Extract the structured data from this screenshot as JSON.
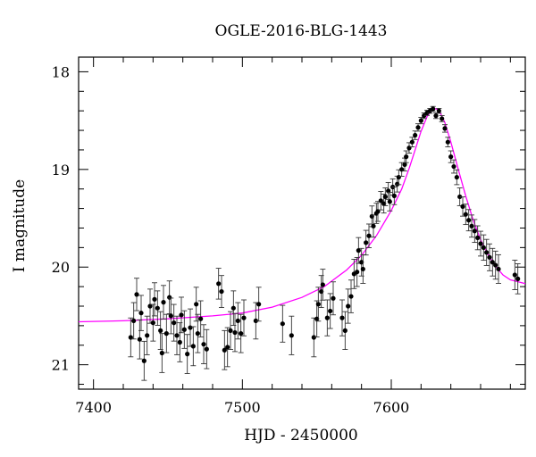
{
  "chart_data": {
    "type": "scatter",
    "title": "OGLE-2016-BLG-1443",
    "xlabel": "HJD - 2450000",
    "ylabel": "I magnitude",
    "xlim": [
      7390,
      7690
    ],
    "ylim": [
      21.25,
      17.85
    ],
    "y_inverted": true,
    "xticks": [
      7400,
      7500,
      7600
    ],
    "yticks": [
      18,
      19,
      20,
      21
    ],
    "grid": false,
    "colors": {
      "data": "#000000",
      "model": "#ff00ff"
    },
    "model_curve": {
      "name": "",
      "x": [
        7390,
        7420,
        7450,
        7480,
        7500,
        7520,
        7540,
        7555,
        7570,
        7580,
        7590,
        7600,
        7607,
        7612,
        7616,
        7620,
        7624,
        7628,
        7632,
        7636,
        7640,
        7645,
        7650,
        7655,
        7660,
        7665,
        7670,
        7675,
        7680,
        7690
      ],
      "y": [
        20.56,
        20.55,
        20.53,
        20.5,
        20.47,
        20.41,
        20.31,
        20.2,
        20.03,
        19.88,
        19.68,
        19.42,
        19.2,
        18.99,
        18.8,
        18.61,
        18.46,
        18.37,
        18.39,
        18.52,
        18.72,
        19.0,
        19.27,
        19.52,
        19.72,
        19.87,
        19.99,
        20.08,
        20.13,
        20.17
      ]
    },
    "series": [
      {
        "name": "",
        "x": [
          7425,
          7427,
          7429,
          7431,
          7432,
          7434,
          7436,
          7438,
          7440,
          7441,
          7443,
          7445,
          7446,
          7447,
          7449,
          7451,
          7452,
          7454,
          7456,
          7458,
          7459,
          7461,
          7463,
          7465,
          7467,
          7469,
          7470,
          7472,
          7474,
          7476,
          7484,
          7486,
          7488,
          7490,
          7492,
          7494,
          7495,
          7497,
          7499,
          7501,
          7509,
          7511,
          7527,
          7533,
          7548,
          7550,
          7551,
          7553,
          7554,
          7557,
          7559,
          7561,
          7567,
          7569,
          7571,
          7573,
          7575,
          7577,
          7578,
          7580,
          7581,
          7583,
          7585,
          7587,
          7588,
          7590,
          7591,
          7593,
          7595,
          7596,
          7598,
          7599,
          7601,
          7602,
          7604,
          7605,
          7607,
          7609,
          7610,
          7612,
          7614,
          7616,
          7618,
          7620,
          7622,
          7624,
          7626,
          7628,
          7630,
          7632,
          7634,
          7636,
          7638,
          7640,
          7642,
          7644,
          7646,
          7648,
          7650,
          7652,
          7654,
          7656,
          7658,
          7660,
          7662,
          7664,
          7666,
          7668,
          7670,
          7672,
          7683,
          7685
        ],
        "y": [
          20.72,
          20.55,
          20.28,
          20.74,
          20.47,
          20.96,
          20.7,
          20.4,
          20.57,
          20.33,
          20.42,
          20.65,
          20.88,
          20.36,
          20.68,
          20.31,
          20.5,
          20.57,
          20.7,
          20.77,
          20.49,
          20.64,
          20.89,
          20.62,
          20.81,
          20.38,
          20.68,
          20.53,
          20.79,
          20.84,
          20.17,
          20.25,
          20.85,
          20.82,
          20.65,
          20.42,
          20.67,
          20.55,
          20.68,
          20.52,
          20.55,
          20.38,
          20.58,
          20.7,
          20.72,
          20.53,
          20.38,
          20.25,
          20.18,
          20.52,
          20.45,
          20.32,
          20.52,
          20.65,
          20.4,
          20.3,
          20.07,
          20.05,
          19.83,
          19.95,
          20.02,
          19.75,
          19.68,
          19.48,
          19.58,
          19.45,
          19.43,
          19.32,
          19.35,
          19.28,
          19.22,
          19.33,
          19.18,
          19.27,
          19.15,
          19.08,
          19.0,
          18.95,
          18.87,
          18.78,
          18.72,
          18.65,
          18.57,
          18.5,
          18.45,
          18.42,
          18.4,
          18.38,
          18.45,
          18.4,
          18.48,
          18.58,
          18.72,
          18.87,
          18.97,
          19.08,
          19.28,
          19.38,
          19.46,
          19.52,
          19.58,
          19.63,
          19.7,
          19.76,
          19.8,
          19.85,
          19.9,
          19.95,
          19.98,
          20.02,
          20.08,
          20.12
        ]
      }
    ]
  }
}
